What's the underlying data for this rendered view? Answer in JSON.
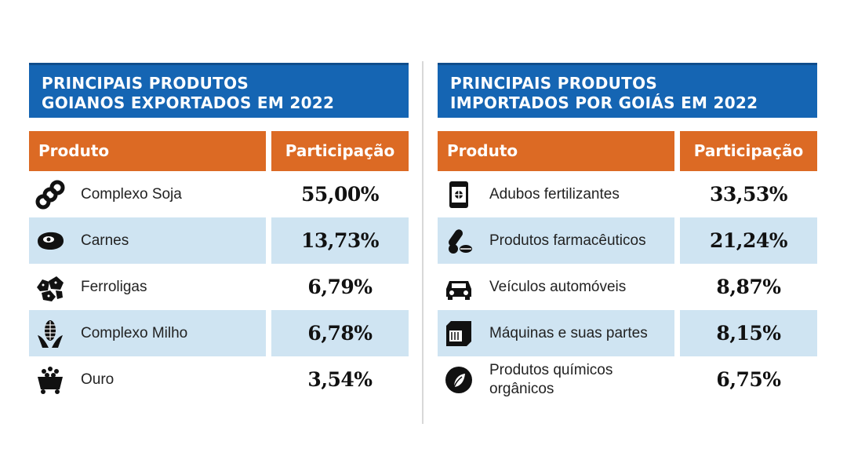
{
  "export": {
    "title_line1": "PRINCIPAIS PRODUTOS",
    "title_line2": "GOIANOS EXPORTADOS EM 2022",
    "col_product": "Produto",
    "col_share": "Participação",
    "rows": [
      {
        "icon": "soy-chain-icon",
        "name": "Complexo Soja",
        "share": "55,00%"
      },
      {
        "icon": "meat-steak-icon",
        "name": "Carnes",
        "share": "13,73%"
      },
      {
        "icon": "ore-rocks-icon",
        "name": "Ferroligas",
        "share": "6,79%"
      },
      {
        "icon": "corn-cob-icon",
        "name": "Complexo Milho",
        "share": "6,78%"
      },
      {
        "icon": "gold-cart-icon",
        "name": "Ouro",
        "share": "3,54%"
      }
    ]
  },
  "import": {
    "title_line1": "PRINCIPAIS PRODUTOS",
    "title_line2": "IMPORTADOS POR GOIÁS EM 2022",
    "col_product": "Produto",
    "col_share": "Participação",
    "rows": [
      {
        "icon": "fertilizer-bag-icon",
        "name": "Adubos fertilizantes",
        "share": "33,53%"
      },
      {
        "icon": "pills-icon",
        "name": "Produtos farmacêuticos",
        "share": "21,24%"
      },
      {
        "icon": "car-icon",
        "name": "Veículos automóveis",
        "share": "8,87%"
      },
      {
        "icon": "machine-icon",
        "name": "Máquinas e suas partes",
        "share": "8,15%"
      },
      {
        "icon": "leaf-flask-icon",
        "name": "Produtos químicos orgânicos",
        "share": "6,75%"
      }
    ]
  },
  "colors": {
    "title_bg": "#1565b3",
    "header_bg": "#dc6a24",
    "alt_row_bg": "#cfe4f2"
  }
}
